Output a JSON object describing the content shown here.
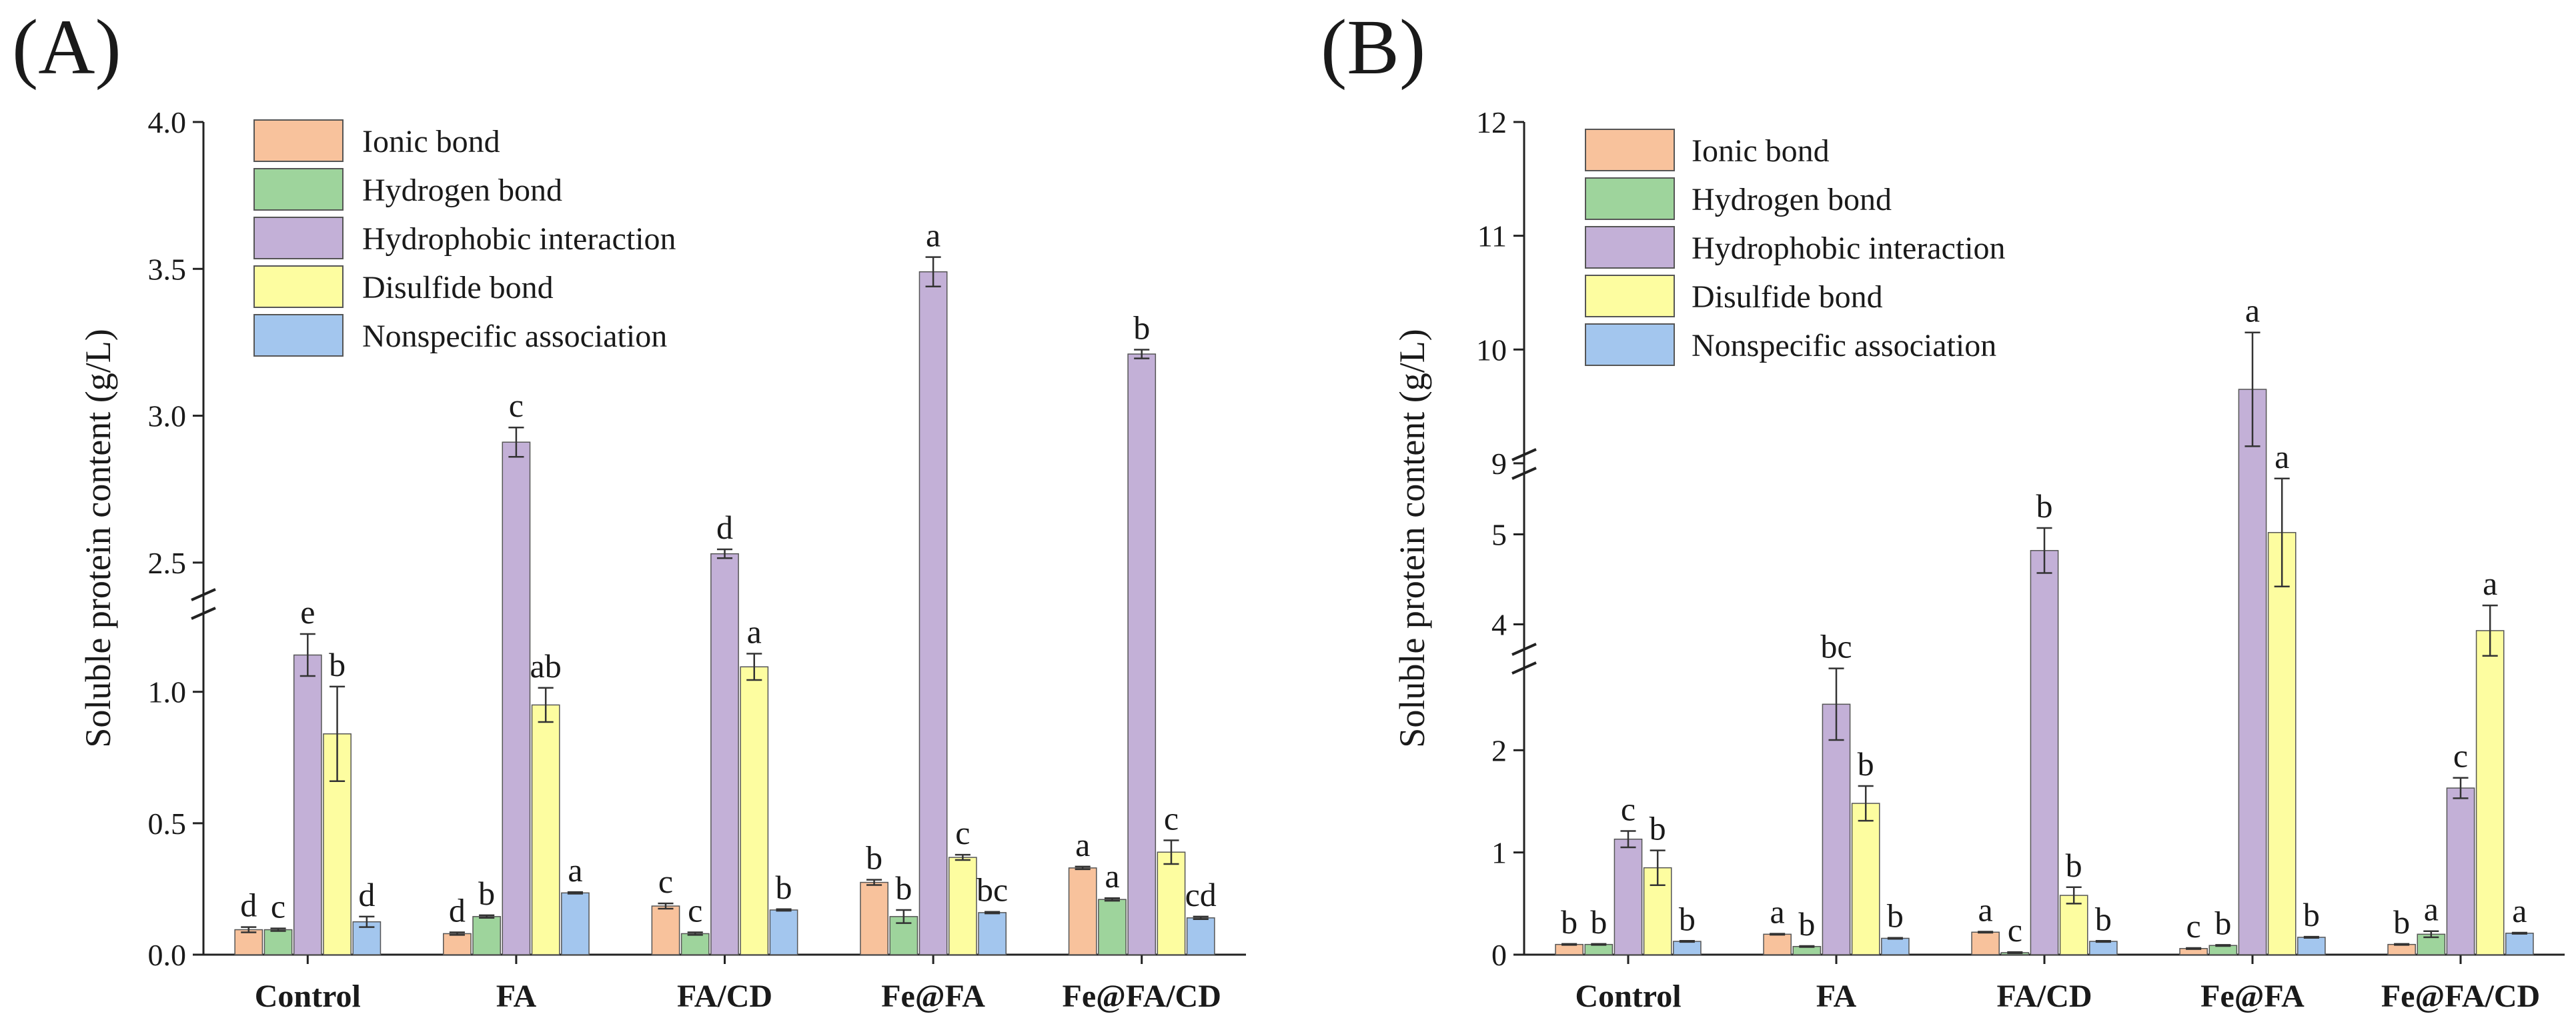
{
  "chart_data": [
    {
      "type": "bar",
      "panel_label": "(A)",
      "ylabel": "Soluble protein content (g/L)",
      "xlabel": "",
      "axis_break": true,
      "segments": [
        {
          "range": [
            0,
            1.4
          ],
          "ticks": [
            0.0,
            0.5,
            1.0
          ],
          "tick_labels": [
            "0.0",
            "0.5",
            "1.0"
          ]
        },
        {
          "range": [
            2.3,
            4.0
          ],
          "ticks": [
            2.5,
            3.0,
            3.5,
            4.0
          ],
          "tick_labels": [
            "2.5",
            "3.0",
            "3.5",
            "4.0"
          ]
        }
      ],
      "categories": [
        "Control",
        "FA",
        "FA/CD",
        "Fe@FA",
        "Fe@FA/CD"
      ],
      "legend_position": "top-left",
      "series": [
        {
          "name": "Ionic bond",
          "color": "#F8C29C",
          "values": [
            0.095,
            0.08,
            0.185,
            0.275,
            0.33
          ],
          "errors": [
            0.01,
            0.005,
            0.01,
            0.01,
            0.005
          ],
          "letters": [
            "d",
            "d",
            "c",
            "b",
            "a"
          ]
        },
        {
          "name": "Hydrogen bond",
          "color": "#9ED49C",
          "values": [
            0.095,
            0.145,
            0.08,
            0.145,
            0.21
          ],
          "errors": [
            0.005,
            0.005,
            0.005,
            0.025,
            0.005
          ],
          "letters": [
            "c",
            "b",
            "c",
            "b",
            "a"
          ]
        },
        {
          "name": "Hydrophobic interaction",
          "color": "#C3B0D7",
          "values": [
            1.14,
            2.91,
            2.53,
            3.49,
            3.21
          ],
          "errors": [
            0.08,
            0.05,
            0.015,
            0.05,
            0.015
          ],
          "letters": [
            "e",
            "c",
            "d",
            "a",
            "b"
          ]
        },
        {
          "name": "Disulfide bond",
          "color": "#FDFDA0",
          "values": [
            0.84,
            0.95,
            1.095,
            0.37,
            0.39
          ],
          "errors": [
            0.18,
            0.065,
            0.05,
            0.01,
            0.045
          ],
          "letters": [
            "b",
            "ab",
            "a",
            "c",
            "c"
          ]
        },
        {
          "name": "Nonspecific association",
          "color": "#A3C6EE",
          "values": [
            0.125,
            0.235,
            0.17,
            0.16,
            0.14
          ],
          "errors": [
            0.02,
            0.003,
            0.003,
            0.003,
            0.005
          ],
          "letters": [
            "d",
            "a",
            "b",
            "bc",
            "cd"
          ]
        }
      ]
    },
    {
      "type": "bar",
      "panel_label": "(B)",
      "ylabel": "Soluble protein content (g/L)",
      "xlabel": "",
      "axis_break": true,
      "segments": [
        {
          "range": [
            0,
            3.0
          ],
          "ticks": [
            0,
            1,
            2
          ],
          "tick_labels": [
            "0",
            "1",
            "2"
          ]
        },
        {
          "range": [
            3.5,
            5.9
          ],
          "ticks": [
            4,
            5
          ],
          "tick_labels": [
            "4",
            "5"
          ]
        },
        {
          "range": [
            8.9,
            12.0
          ],
          "ticks": [
            9,
            10,
            11,
            12
          ],
          "tick_labels": [
            "9",
            "10",
            "11",
            "12"
          ]
        }
      ],
      "categories": [
        "Control",
        "FA",
        "FA/CD",
        "Fe@FA",
        "Fe@FA/CD"
      ],
      "legend_position": "top-left",
      "series": [
        {
          "name": "Ionic bond",
          "color": "#F8C29C",
          "values": [
            0.1,
            0.2,
            0.22,
            0.06,
            0.1
          ],
          "errors": [
            0.005,
            0.005,
            0.005,
            0.005,
            0.005
          ],
          "letters": [
            "b",
            "a",
            "a",
            "c",
            "b"
          ]
        },
        {
          "name": "Hydrogen bond",
          "color": "#9ED49C",
          "values": [
            0.1,
            0.08,
            0.02,
            0.09,
            0.2
          ],
          "errors": [
            0.005,
            0.005,
            0.005,
            0.005,
            0.03
          ],
          "letters": [
            "b",
            "b",
            "c",
            "b",
            "a"
          ]
        },
        {
          "name": "Hydrophobic interaction",
          "color": "#C3B0D7",
          "values": [
            1.13,
            2.45,
            4.82,
            9.65,
            1.63
          ],
          "errors": [
            0.08,
            0.35,
            0.25,
            0.5,
            0.1
          ],
          "letters": [
            "c",
            "bc",
            "b",
            "a",
            "c"
          ]
        },
        {
          "name": "Disulfide bond",
          "color": "#FDFDA0",
          "values": [
            0.85,
            1.48,
            0.58,
            5.02,
            3.93
          ],
          "errors": [
            0.17,
            0.17,
            0.08,
            0.6,
            0.28
          ],
          "letters": [
            "b",
            "b",
            "b",
            "a",
            "a"
          ]
        },
        {
          "name": "Nonspecific association",
          "color": "#A3C6EE",
          "values": [
            0.13,
            0.16,
            0.13,
            0.17,
            0.21
          ],
          "errors": [
            0.005,
            0.005,
            0.005,
            0.005,
            0.005
          ],
          "letters": [
            "b",
            "b",
            "b",
            "b",
            "a"
          ]
        }
      ]
    }
  ]
}
